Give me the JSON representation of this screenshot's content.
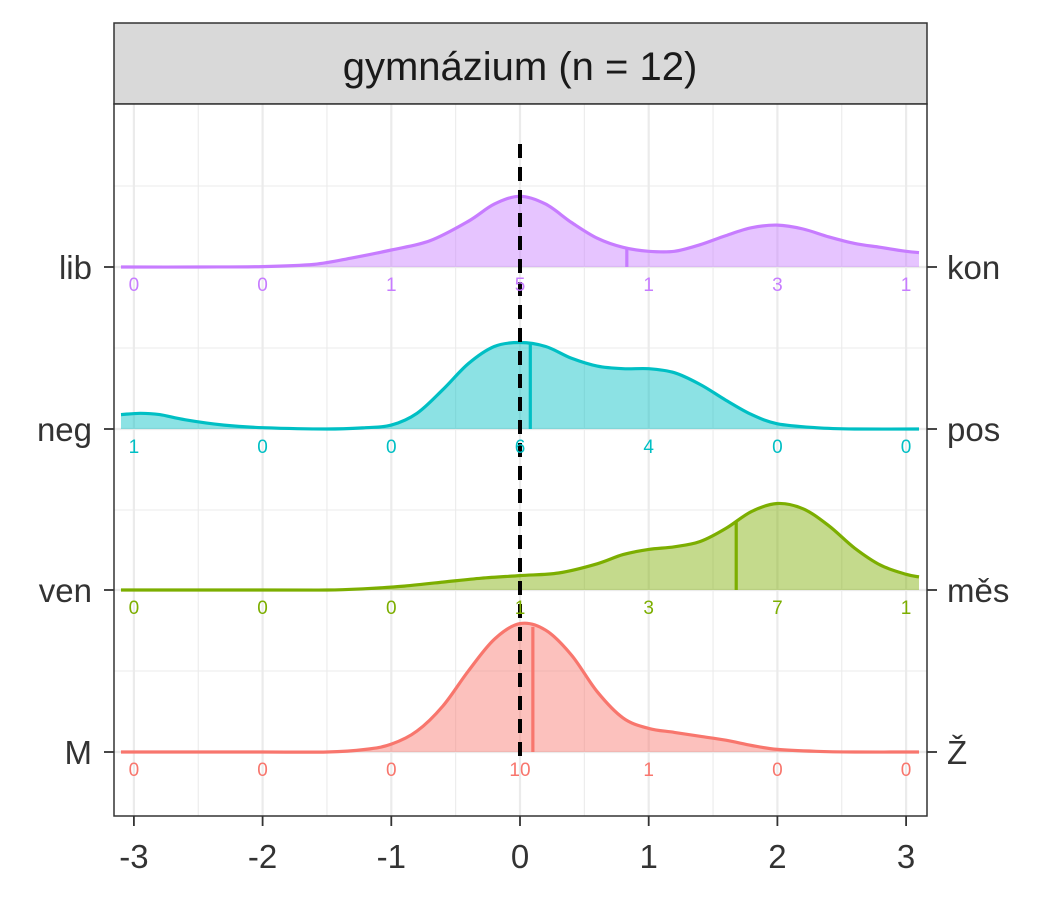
{
  "chart_data": {
    "type": "ridgeline",
    "title": "gymnázium (n = 12)",
    "xlim": [
      -3.1,
      3.1
    ],
    "x_ticks": [
      -3,
      -2,
      -1,
      0,
      1,
      2,
      3
    ],
    "x_tick_labels": [
      "-3",
      "-2",
      "-1",
      "0",
      "1",
      "2",
      "3"
    ],
    "reference_line_x": 0,
    "count_positions": [
      -3,
      -2,
      -1,
      0,
      1,
      2,
      3
    ],
    "grid": true,
    "series": [
      {
        "left_label": "lib",
        "right_label": "kon",
        "color": "#C77CFF",
        "mean": 0.83,
        "counts": [
          "0",
          "0",
          "1",
          "5",
          "1",
          "3",
          "1"
        ],
        "density": [
          [
            -3.1,
            0.0
          ],
          [
            -2.5,
            0.0
          ],
          [
            -2.0,
            0.003
          ],
          [
            -1.6,
            0.02
          ],
          [
            -1.3,
            0.07
          ],
          [
            -1.0,
            0.13
          ],
          [
            -0.7,
            0.2
          ],
          [
            -0.4,
            0.35
          ],
          [
            -0.2,
            0.48
          ],
          [
            0.0,
            0.54
          ],
          [
            0.2,
            0.48
          ],
          [
            0.4,
            0.34
          ],
          [
            0.6,
            0.22
          ],
          [
            0.8,
            0.15
          ],
          [
            1.0,
            0.12
          ],
          [
            1.2,
            0.12
          ],
          [
            1.4,
            0.17
          ],
          [
            1.6,
            0.24
          ],
          [
            1.8,
            0.3
          ],
          [
            2.0,
            0.32
          ],
          [
            2.2,
            0.29
          ],
          [
            2.4,
            0.23
          ],
          [
            2.6,
            0.18
          ],
          [
            2.8,
            0.15
          ],
          [
            3.0,
            0.12
          ],
          [
            3.1,
            0.11
          ]
        ]
      },
      {
        "left_label": "neg",
        "right_label": "pos",
        "color": "#00BFC4",
        "mean": 0.08,
        "counts": [
          "1",
          "0",
          "0",
          "6",
          "4",
          "0",
          "0"
        ],
        "density": [
          [
            -3.1,
            0.11
          ],
          [
            -2.95,
            0.12
          ],
          [
            -2.8,
            0.11
          ],
          [
            -2.6,
            0.07
          ],
          [
            -2.3,
            0.03
          ],
          [
            -2.0,
            0.01
          ],
          [
            -1.5,
            0.0
          ],
          [
            -1.2,
            0.01
          ],
          [
            -1.0,
            0.03
          ],
          [
            -0.8,
            0.12
          ],
          [
            -0.6,
            0.3
          ],
          [
            -0.4,
            0.5
          ],
          [
            -0.2,
            0.63
          ],
          [
            0.0,
            0.66
          ],
          [
            0.2,
            0.63
          ],
          [
            0.4,
            0.54
          ],
          [
            0.6,
            0.48
          ],
          [
            0.8,
            0.46
          ],
          [
            1.0,
            0.46
          ],
          [
            1.2,
            0.43
          ],
          [
            1.4,
            0.34
          ],
          [
            1.6,
            0.22
          ],
          [
            1.8,
            0.11
          ],
          [
            2.0,
            0.04
          ],
          [
            2.3,
            0.01
          ],
          [
            2.6,
            0.0
          ],
          [
            3.1,
            0.0
          ]
        ]
      },
      {
        "left_label": "ven",
        "right_label": "měs",
        "color": "#7CAE00",
        "mean": 1.68,
        "counts": [
          "0",
          "0",
          "0",
          "1",
          "3",
          "7",
          "1"
        ],
        "density": [
          [
            -3.1,
            0.0
          ],
          [
            -2.0,
            0.0
          ],
          [
            -1.5,
            0.0
          ],
          [
            -1.2,
            0.01
          ],
          [
            -0.9,
            0.03
          ],
          [
            -0.6,
            0.06
          ],
          [
            -0.3,
            0.09
          ],
          [
            0.0,
            0.11
          ],
          [
            0.3,
            0.13
          ],
          [
            0.6,
            0.2
          ],
          [
            0.8,
            0.27
          ],
          [
            1.0,
            0.31
          ],
          [
            1.2,
            0.33
          ],
          [
            1.4,
            0.37
          ],
          [
            1.6,
            0.47
          ],
          [
            1.8,
            0.6
          ],
          [
            2.0,
            0.66
          ],
          [
            2.2,
            0.62
          ],
          [
            2.4,
            0.49
          ],
          [
            2.6,
            0.32
          ],
          [
            2.8,
            0.19
          ],
          [
            3.0,
            0.12
          ],
          [
            3.1,
            0.1
          ]
        ]
      },
      {
        "left_label": "M",
        "right_label": "Ž",
        "color": "#F8766D",
        "mean": 0.1,
        "counts": [
          "0",
          "0",
          "0",
          "10",
          "1",
          "0",
          "0"
        ],
        "density": [
          [
            -3.1,
            0.0
          ],
          [
            -2.0,
            0.0
          ],
          [
            -1.5,
            0.0
          ],
          [
            -1.2,
            0.02
          ],
          [
            -1.0,
            0.06
          ],
          [
            -0.8,
            0.16
          ],
          [
            -0.6,
            0.35
          ],
          [
            -0.4,
            0.62
          ],
          [
            -0.2,
            0.86
          ],
          [
            0.0,
            0.98
          ],
          [
            0.2,
            0.93
          ],
          [
            0.4,
            0.74
          ],
          [
            0.6,
            0.46
          ],
          [
            0.8,
            0.26
          ],
          [
            1.0,
            0.18
          ],
          [
            1.2,
            0.15
          ],
          [
            1.4,
            0.12
          ],
          [
            1.6,
            0.09
          ],
          [
            1.8,
            0.05
          ],
          [
            2.0,
            0.02
          ],
          [
            2.3,
            0.005
          ],
          [
            2.6,
            0.0
          ],
          [
            3.1,
            0.0
          ]
        ]
      }
    ]
  }
}
